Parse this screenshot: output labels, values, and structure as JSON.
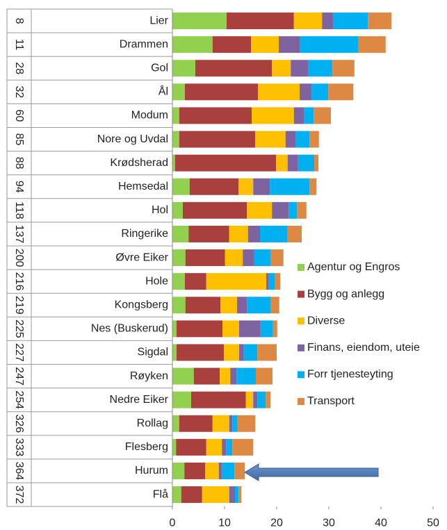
{
  "chart_data": {
    "type": "stacked_barh",
    "categories": [
      "Lier",
      "Drammen",
      "Gol",
      "Ål",
      "Modum",
      "Nore og Uvdal",
      "Krødsherad",
      "Hemsedal",
      "Hol",
      "Ringerike",
      "Øvre Eiker",
      "Hole",
      "Kongsberg",
      "Nes (Buskerud)",
      "Sigdal",
      "Røyken",
      "Nedre Eiker",
      "Rollag",
      "Flesberg",
      "Hurum",
      "Flå"
    ],
    "ranks": [
      "8",
      "11",
      "28",
      "32",
      "60",
      "85",
      "88",
      "94",
      "118",
      "137",
      "200",
      "216",
      "219",
      "225",
      "227",
      "247",
      "254",
      "326",
      "333",
      "364",
      "372"
    ],
    "series": [
      {
        "name": "Agentur og Engros",
        "color": "#92d050",
        "values": [
          10.4,
          7.7,
          4.4,
          2.4,
          1.3,
          1.3,
          0.5,
          3.3,
          2.0,
          3.1,
          2.5,
          2.4,
          2.5,
          0.8,
          0.8,
          4.1,
          3.6,
          1.3,
          0.7,
          2.3,
          1.7
        ]
      },
      {
        "name": "Bygg og anlegg",
        "color": "#a9403d",
        "values": [
          12.9,
          7.4,
          14.7,
          14.0,
          13.9,
          14.6,
          19.4,
          9.4,
          12.3,
          7.8,
          7.6,
          4.1,
          6.7,
          8.8,
          9.1,
          5.0,
          10.5,
          6.4,
          5.8,
          4.0,
          4.0
        ]
      },
      {
        "name": "Diverse",
        "color": "#ffc000",
        "values": [
          5.4,
          5.3,
          3.6,
          8.0,
          8.1,
          5.8,
          2.2,
          2.8,
          4.8,
          3.6,
          3.4,
          11.5,
          3.2,
          3.2,
          2.9,
          2.0,
          1.4,
          3.2,
          3.0,
          2.6,
          5.2
        ]
      },
      {
        "name": "Finans, eiendom, uteie",
        "color": "#7f62a0",
        "values": [
          2.2,
          4.1,
          3.4,
          2.3,
          2.0,
          2.0,
          2.0,
          3.2,
          3.2,
          2.3,
          2.1,
          0.5,
          1.9,
          4.1,
          0.9,
          1.2,
          0.8,
          0.6,
          0.8,
          0.6,
          1.1
        ]
      },
      {
        "name": "Forr tjenesteyting",
        "color": "#00b0f0",
        "values": [
          6.6,
          11.1,
          4.6,
          3.2,
          1.8,
          2.6,
          3.1,
          7.6,
          1.6,
          5.2,
          3.3,
          1.2,
          4.6,
          2.4,
          2.6,
          3.7,
          1.6,
          1.0,
          1.2,
          2.4,
          0.7
        ]
      },
      {
        "name": "Transport",
        "color": "#dd8843",
        "values": [
          4.5,
          5.3,
          4.2,
          4.8,
          3.3,
          1.8,
          0.8,
          1.3,
          1.8,
          2.8,
          2.4,
          1.0,
          1.6,
          0.8,
          3.7,
          3.2,
          0.9,
          3.4,
          4.0,
          2.0,
          0.5
        ]
      }
    ],
    "xlim": [
      0,
      50
    ],
    "xticks": [
      0,
      10,
      20,
      30,
      40,
      50
    ]
  }
}
